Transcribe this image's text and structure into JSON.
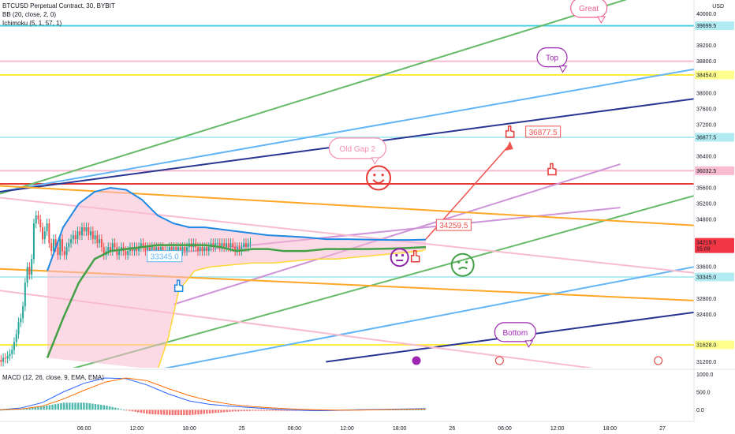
{
  "legend": {
    "symbol": "BTCUSD Perpetual Contract, 30, BYBIT",
    "bb": "BB (20, close, 2, 0)",
    "ichimoku": "Ichimoku (5, 1, 57, 1)",
    "macd": "MACD (12, 26, close, 9, EMA, EMA)"
  },
  "currency": "USD",
  "price_axis": {
    "ticks": [
      "40000.0",
      "39200.0",
      "38800.0",
      "38000.0",
      "37600.0",
      "37200.0",
      "36400.0",
      "35600.0",
      "35200.0",
      "34800.0",
      "33600.0",
      "32800.0",
      "32400.0",
      "31200.0"
    ],
    "ticks_y": [
      40000,
      39200,
      38800,
      38000,
      37600,
      37200,
      36400,
      35600,
      35200,
      34800,
      33600,
      32800,
      32400,
      31200
    ],
    "labels": [
      {
        "text": "39699.5",
        "price": 39699.5,
        "bg": "#b2ebf2",
        "fg": "#131722"
      },
      {
        "text": "38454.0",
        "price": 38454.0,
        "bg": "#ffff8d",
        "fg": "#131722"
      },
      {
        "text": "36877.5",
        "price": 36877.5,
        "bg": "#b2ebf2",
        "fg": "#131722"
      },
      {
        "text": "36032.5",
        "price": 36032.5,
        "bg": "#f8bbd0",
        "fg": "#131722"
      },
      {
        "text": "34259.5",
        "price": 34259.5,
        "bg": "#ffffff",
        "fg": "#131722"
      },
      {
        "text": "34219.5",
        "price": 34219.5,
        "bg": "#f23645",
        "fg": "#ffffff"
      },
      {
        "text": "15:09",
        "price": 34060,
        "bg": "#f23645",
        "fg": "#ffffff"
      },
      {
        "text": "33345.0",
        "price": 33345.0,
        "bg": "#b2ebf2",
        "fg": "#131722"
      },
      {
        "text": "31628.0",
        "price": 31628.0,
        "bg": "#ffff8d",
        "fg": "#131722"
      }
    ]
  },
  "macd_axis": {
    "ticks": [
      "1000.0",
      "500.0",
      "0.0"
    ],
    "ticks_y": [
      1000,
      500,
      0
    ]
  },
  "time_axis": {
    "ticks": [
      "06:00",
      "12:00",
      "18:00",
      "25",
      "06:00",
      "12:00",
      "18:00",
      "26",
      "06:00",
      "12:00",
      "18:00",
      "27"
    ],
    "ticks_x": [
      0.5,
      1,
      1.5,
      2,
      2.5,
      3,
      3.5,
      4,
      4.5,
      5,
      5.5,
      6
    ]
  },
  "annotations": {
    "great": "Great",
    "top": "Top",
    "old_gap": "Old Gap 2",
    "bottom": "Bottom",
    "price_34259": "34259.5",
    "price_36877": "36877.5",
    "price_33345": "33345.0"
  },
  "chart_data": {
    "type": "line",
    "title": "BTCUSD Perpetual Contract, 30, BYBIT",
    "x_unit": "days from Oct 24 00:00",
    "xlim": [
      -0.3,
      6.3
    ],
    "ylim": [
      31050,
      40350
    ],
    "horizontal_levels": [
      {
        "price": 39699.5,
        "color": "#4dd0e1"
      },
      {
        "price": 38454.0,
        "color": "#ffeb3b"
      },
      {
        "price": 36877.5,
        "color": "#b2ebf2"
      },
      {
        "price": 36032.5,
        "color": "#f8bbd0"
      },
      {
        "price": 35700,
        "color": "#e53935"
      },
      {
        "price": 33345.0,
        "color": "#b2ebf2"
      },
      {
        "price": 31628.0,
        "color": "#ffeb3b"
      },
      {
        "price": 38800,
        "color": "#f8bbd0"
      },
      {
        "price": 40400,
        "color": "#f8bbd0"
      }
    ],
    "trend_lines": [
      {
        "color": "#66bb6a",
        "x": [
          -0.3,
          5.7
        ],
        "y": [
          35450,
          40400
        ]
      },
      {
        "color": "#64b5f6",
        "x": [
          -0.3,
          6.3
        ],
        "y": [
          35500,
          38600
        ]
      },
      {
        "color": "#283593",
        "x": [
          -0.3,
          6.3
        ],
        "y": [
          35500,
          37850
        ]
      },
      {
        "color": "#ce93d8",
        "x": [
          1.35,
          5.6
        ],
        "y": [
          32650,
          36200
        ]
      },
      {
        "color": "#ce93d8",
        "x": [
          1.35,
          5.6
        ],
        "y": [
          33950,
          35100
        ]
      },
      {
        "color": "#66bb6a",
        "x": [
          0.35,
          6.3
        ],
        "y": [
          31000,
          35400
        ]
      },
      {
        "color": "#64b5f6",
        "x": [
          1.2,
          6.3
        ],
        "y": [
          31000,
          33600
        ]
      },
      {
        "color": "#283593",
        "x": [
          2.8,
          6.3
        ],
        "y": [
          31200,
          32450
        ]
      },
      {
        "color": "#ffa726",
        "x": [
          -0.3,
          6.3
        ],
        "y": [
          35650,
          34650
        ]
      },
      {
        "color": "#ffa726",
        "x": [
          -0.3,
          6.3
        ],
        "y": [
          33550,
          32750
        ]
      },
      {
        "color": "#f8bbd0",
        "x": [
          -0.3,
          6.3
        ],
        "y": [
          35350,
          33450
        ]
      },
      {
        "color": "#f8bbd0",
        "x": [
          -0.3,
          6.3
        ],
        "y": [
          33000,
          30700
        ]
      }
    ],
    "candles": {
      "start_x": -0.29,
      "step": 0.0208,
      "open": [
        31250,
        31200,
        31300,
        31280,
        31350,
        31400,
        31500,
        31700,
        31900,
        32200,
        32300,
        32600,
        33200,
        33600,
        33400,
        33800,
        34700,
        34900,
        34800,
        34600,
        34300,
        34500,
        34700,
        34200,
        34000,
        34300,
        34100,
        33900,
        34300,
        34000,
        33900,
        34100,
        34200,
        34300,
        34400,
        34300,
        34500,
        34400,
        34600,
        34500,
        34600,
        34400,
        34500,
        34300,
        34400,
        34200,
        34300,
        34100,
        33900,
        34000,
        34100,
        34000,
        34200,
        34100,
        33900,
        34000,
        34100,
        34000,
        33900,
        34000,
        34100,
        34000,
        34100,
        34000,
        34100,
        34200,
        34100,
        34000,
        34100,
        34000,
        34100,
        34000,
        34100,
        34000,
        34100,
        34000,
        33900,
        34000,
        34100,
        34000,
        34100,
        34000,
        34100,
        34000,
        34100,
        34000,
        34100,
        34200,
        34100,
        34200,
        34100,
        34000,
        34100,
        34000,
        34100,
        34000,
        34100,
        34200,
        34100,
        34200,
        34200,
        34100,
        34200,
        34100,
        34200,
        34100,
        34200,
        34100,
        34000,
        34100,
        34000,
        34100,
        34200,
        34100,
        34200
      ],
      "close": [
        31200,
        31300,
        31280,
        31350,
        31400,
        31500,
        31700,
        31900,
        32200,
        32300,
        32600,
        33200,
        33600,
        33400,
        33800,
        34700,
        34900,
        34800,
        34600,
        34300,
        34500,
        34700,
        34200,
        34000,
        34300,
        34100,
        33900,
        34300,
        34000,
        33900,
        34100,
        34200,
        34300,
        34400,
        34300,
        34500,
        34400,
        34600,
        34500,
        34600,
        34400,
        34500,
        34300,
        34400,
        34200,
        34300,
        34100,
        33900,
        34000,
        34100,
        34000,
        34200,
        34100,
        33900,
        34000,
        34100,
        34000,
        33900,
        34000,
        34100,
        34000,
        34100,
        34000,
        34100,
        34200,
        34100,
        34000,
        34100,
        34000,
        34100,
        34000,
        34100,
        34000,
        34100,
        34000,
        33900,
        34000,
        34100,
        34000,
        34100,
        34000,
        34100,
        34000,
        34100,
        34000,
        34100,
        34200,
        34100,
        34200,
        34100,
        34000,
        34100,
        34000,
        34100,
        34000,
        34100,
        34200,
        34100,
        34200,
        34200,
        34100,
        34200,
        34100,
        34200,
        34100,
        34200,
        34100,
        34000,
        34100,
        34000,
        34100,
        34200,
        34100,
        34200,
        34220
      ]
    },
    "bb_upper": {
      "color": "#1e88e5",
      "x": [
        0.15,
        0.3,
        0.45,
        0.6,
        0.75,
        0.9,
        1.05,
        1.2,
        1.35,
        1.5,
        1.65,
        1.8,
        1.95,
        2.1,
        2.25,
        2.4,
        2.6,
        2.8,
        3.0,
        3.2,
        3.4,
        3.6,
        3.75
      ],
      "y": [
        33500,
        34600,
        35200,
        35500,
        35600,
        35550,
        35300,
        34900,
        34700,
        34600,
        34600,
        34550,
        34500,
        34450,
        34400,
        34380,
        34350,
        34300,
        34300,
        34290,
        34280,
        34280,
        34290
      ]
    },
    "bb_basis": {
      "color": "#43a047",
      "x": [
        0.15,
        0.3,
        0.45,
        0.6,
        0.75,
        0.9,
        1.05,
        1.2,
        1.35,
        1.5,
        1.65,
        1.8,
        1.95,
        2.1,
        2.25,
        2.4,
        2.6,
        2.8,
        3.0,
        3.2,
        3.4,
        3.6,
        3.75
      ],
      "y": [
        31300,
        32300,
        33200,
        33800,
        34000,
        34050,
        34100,
        34150,
        34150,
        34150,
        34150,
        34100,
        34000,
        34050,
        34050,
        34000,
        34000,
        34050,
        34050,
        34050,
        34060,
        34080,
        34100
      ]
    },
    "bb_lower": {
      "color": "#fdd835",
      "x": [
        1.2,
        1.3,
        1.4,
        1.55,
        1.7,
        1.9,
        2.1,
        2.3,
        2.5,
        2.7,
        2.9,
        3.1,
        3.3,
        3.5,
        3.7,
        3.75
      ],
      "y": [
        31000,
        31800,
        33000,
        33500,
        33600,
        33650,
        33700,
        33700,
        33750,
        33800,
        33800,
        33850,
        33900,
        33950,
        34000,
        34050
      ]
    },
    "macd": {
      "x": [
        -0.3,
        -0.1,
        0.1,
        0.3,
        0.5,
        0.7,
        0.9,
        1.1,
        1.3,
        1.5,
        1.7,
        1.9,
        2.1,
        2.3,
        2.5,
        2.7,
        2.9,
        3.1,
        3.3,
        3.5,
        3.75
      ],
      "macd": [
        0,
        50,
        200,
        500,
        750,
        900,
        880,
        700,
        450,
        250,
        150,
        100,
        60,
        20,
        -10,
        -30,
        -20,
        0,
        10,
        20,
        30
      ],
      "signal": [
        0,
        20,
        100,
        300,
        550,
        780,
        900,
        820,
        600,
        400,
        250,
        150,
        90,
        50,
        20,
        0,
        -10,
        -10,
        0,
        10,
        20
      ]
    }
  }
}
